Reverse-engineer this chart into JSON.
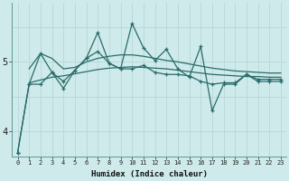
{
  "xlabel": "Humidex (Indice chaleur)",
  "bg_color": "#ceeaea",
  "grid_color": "#b8d8d8",
  "line_color": "#2a6b6b",
  "xlim": [
    -0.5,
    23.5
  ],
  "ylim": [
    3.65,
    5.85
  ],
  "yticks": [
    4,
    5
  ],
  "xticks": [
    0,
    1,
    2,
    3,
    4,
    5,
    6,
    7,
    8,
    9,
    10,
    11,
    12,
    13,
    14,
    15,
    16,
    17,
    18,
    19,
    20,
    21,
    22,
    23
  ],
  "series_main": [
    3.7,
    4.68,
    4.68,
    4.85,
    4.72,
    4.88,
    5.05,
    5.15,
    4.98,
    4.9,
    4.9,
    4.95,
    4.85,
    4.82,
    4.82,
    4.8,
    4.72,
    4.68,
    4.7,
    4.7,
    4.82,
    4.75,
    4.75,
    4.75
  ],
  "series_peaks": [
    3.7,
    4.68,
    5.12,
    4.85,
    4.62,
    4.88,
    5.05,
    5.42,
    4.98,
    4.9,
    5.55,
    5.2,
    5.02,
    5.18,
    4.9,
    4.78,
    5.22,
    4.3,
    4.68,
    4.68,
    4.82,
    4.72,
    4.72,
    4.72
  ],
  "smooth1_x": [
    1,
    2,
    3,
    4,
    5,
    6,
    7,
    8,
    9,
    10,
    11,
    12,
    13,
    14,
    15,
    16,
    17,
    18,
    19,
    20,
    21,
    22,
    23
  ],
  "smooth1_y": [
    4.9,
    5.12,
    5.05,
    4.9,
    4.92,
    5.0,
    5.05,
    5.08,
    5.1,
    5.1,
    5.08,
    5.05,
    5.02,
    5.0,
    4.97,
    4.94,
    4.91,
    4.89,
    4.87,
    4.86,
    4.85,
    4.84,
    4.84
  ],
  "smooth2_x": [
    1,
    2,
    3,
    4,
    5,
    6,
    7,
    8,
    9,
    10,
    11,
    12,
    13,
    14,
    15,
    16,
    17,
    18,
    19,
    20,
    21,
    22,
    23
  ],
  "smooth2_y": [
    4.7,
    4.74,
    4.78,
    4.8,
    4.83,
    4.86,
    4.89,
    4.91,
    4.92,
    4.93,
    4.92,
    4.91,
    4.9,
    4.88,
    4.86,
    4.84,
    4.82,
    4.81,
    4.8,
    4.79,
    4.79,
    4.78,
    4.78
  ]
}
